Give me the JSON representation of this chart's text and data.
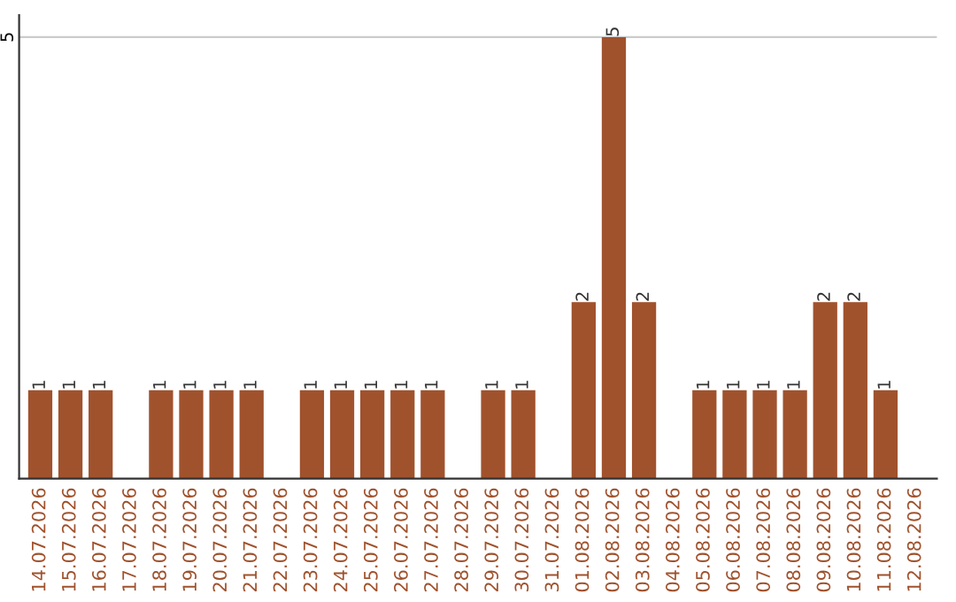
{
  "chart_data": {
    "type": "bar",
    "categories": [
      "14.07.2026",
      "15.07.2026",
      "16.07.2026",
      "17.07.2026",
      "18.07.2026",
      "19.07.2026",
      "20.07.2026",
      "21.07.2026",
      "22.07.2026",
      "23.07.2026",
      "24.07.2026",
      "25.07.2026",
      "26.07.2026",
      "27.07.2026",
      "28.07.2026",
      "29.07.2026",
      "30.07.2026",
      "31.07.2026",
      "01.08.2026",
      "02.08.2026",
      "03.08.2026",
      "04.08.2026",
      "05.08.2026",
      "06.08.2026",
      "07.08.2026",
      "08.08.2026",
      "09.08.2026",
      "10.08.2026",
      "11.08.2026",
      "12.08.2026"
    ],
    "values": [
      1,
      1,
      1,
      0,
      1,
      1,
      1,
      1,
      0,
      1,
      1,
      1,
      1,
      1,
      0,
      1,
      1,
      0,
      2,
      5,
      2,
      0,
      1,
      1,
      1,
      1,
      2,
      2,
      1,
      0
    ],
    "value_labels": [
      "1",
      "1",
      "1",
      null,
      "1",
      "1",
      "1",
      "1",
      null,
      "1",
      "1",
      "1",
      "1",
      "1",
      null,
      "1",
      "1",
      null,
      "2",
      "5",
      "2",
      null,
      "1",
      "1",
      "1",
      "1",
      "2",
      "2",
      "1",
      null
    ],
    "color": "#a0522d",
    "ylim": [
      0,
      5.25
    ],
    "yticks": [
      5
    ],
    "grid": "y"
  }
}
